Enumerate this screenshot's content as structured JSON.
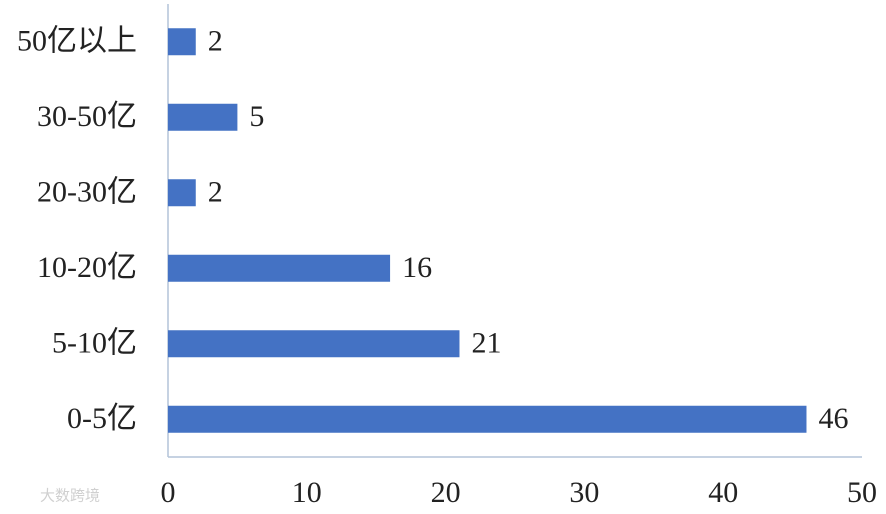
{
  "chart_data": {
    "type": "bar",
    "orientation": "horizontal",
    "categories": [
      "50亿以上",
      "30-50亿",
      "20-30亿",
      "10-20亿",
      "5-10亿",
      "0-5亿"
    ],
    "values": [
      2,
      5,
      2,
      16,
      21,
      46
    ],
    "color": "#4472c4",
    "xlim": [
      0,
      50
    ],
    "xticks": [
      0,
      10,
      20,
      30,
      40,
      50
    ],
    "grid": false,
    "watermark": "大数跨境"
  }
}
